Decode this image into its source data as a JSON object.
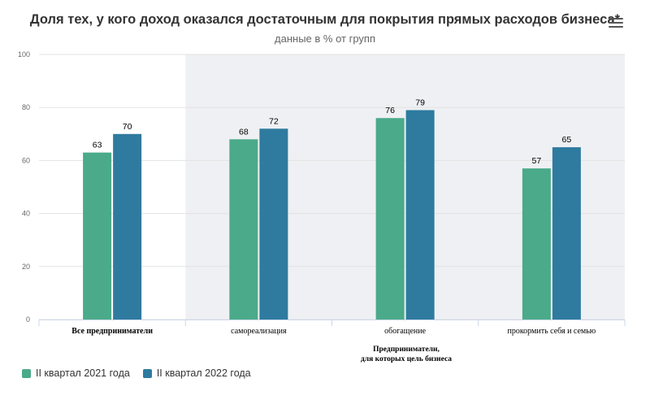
{
  "header": {
    "title": "Доля тех, у кого доход оказался достаточным для покрытия прямых расходов бизнеса*",
    "subtitle": "данные в % от групп"
  },
  "colors": {
    "series_2021": "#4aaa8a",
    "series_2022": "#2e7b9f",
    "band": "#eff0f3"
  },
  "chart_data": {
    "type": "bar",
    "title": "Доля тех, у кого доход оказался достаточным для покрытия прямых расходов бизнеса*",
    "subtitle": "данные в % от групп",
    "categories": [
      "Все предприниматели",
      "самореализация",
      "обогащение",
      "прокормить себя и семью"
    ],
    "series": [
      {
        "name": "II квартал 2021 года",
        "values": [
          63,
          68,
          76,
          57
        ]
      },
      {
        "name": "II квартал 2022 года",
        "values": [
          70,
          72,
          79,
          65
        ]
      }
    ],
    "ylim": [
      0,
      100
    ],
    "yticks": [
      0,
      20,
      40,
      60,
      80,
      100
    ],
    "group_label_lines": [
      "Предприниматели,",
      "для которых цель бизнеса"
    ],
    "legend_position": "bottom-left"
  }
}
